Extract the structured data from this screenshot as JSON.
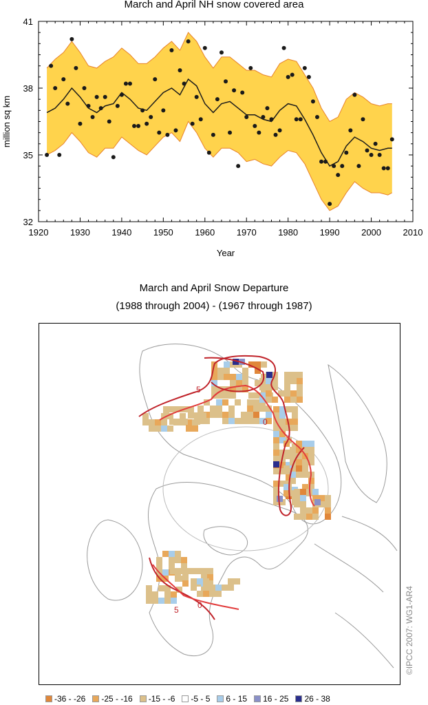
{
  "chart_data": [
    {
      "type": "scatter",
      "title": "March and April NH snow covered area",
      "xlabel": "Year",
      "ylabel": "million sq km",
      "xlim": [
        1920,
        2010
      ],
      "ylim": [
        32,
        41
      ],
      "xticks": [
        1920,
        1930,
        1940,
        1950,
        1960,
        1970,
        1980,
        1990,
        2000,
        2010
      ],
      "yticks": [
        32,
        35,
        38,
        41
      ],
      "colors": {
        "band": "#FFD34C",
        "band_edge": "#E8822A",
        "points": "#1a1a1a",
        "smooth": "#1a1a1a"
      },
      "series": [
        {
          "kind": "points",
          "x": [
            1922,
            1923,
            1924,
            1925,
            1926,
            1927,
            1928,
            1929,
            1930,
            1931,
            1932,
            1933,
            1934,
            1935,
            1936,
            1937,
            1938,
            1939,
            1940,
            1941,
            1942,
            1943,
            1944,
            1945,
            1946,
            1947,
            1948,
            1949,
            1950,
            1951,
            1952,
            1953,
            1954,
            1955,
            1956,
            1957,
            1958,
            1959,
            1960,
            1961,
            1962,
            1963,
            1964,
            1965,
            1966,
            1967,
            1968,
            1969,
            1970,
            1971,
            1972,
            1973,
            1974,
            1975,
            1976,
            1977,
            1978,
            1979,
            1980,
            1981,
            1982,
            1983,
            1984,
            1985,
            1986,
            1987,
            1988,
            1989,
            1990,
            1991,
            1992,
            1993,
            1994,
            1995,
            1996,
            1997,
            1998,
            1999,
            2000,
            2001,
            2002,
            2003,
            2004,
            2005
          ],
          "y": [
            35.0,
            39.0,
            38.0,
            35.0,
            38.4,
            37.3,
            40.2,
            38.9,
            36.4,
            38.0,
            37.2,
            36.7,
            37.6,
            37.1,
            37.6,
            36.5,
            34.9,
            37.2,
            37.7,
            38.2,
            38.2,
            36.3,
            36.3,
            37.0,
            36.4,
            36.7,
            38.4,
            36.0,
            37.0,
            35.9,
            39.7,
            36.1,
            38.8,
            38.2,
            40.1,
            36.4,
            37.6,
            36.6,
            39.8,
            35.1,
            35.9,
            37.5,
            39.6,
            38.3,
            36.0,
            37.9,
            34.5,
            37.8,
            36.7,
            38.9,
            36.3,
            36.0,
            36.7,
            37.1,
            36.6,
            35.9,
            36.1,
            39.8,
            38.5,
            38.6,
            36.6,
            36.6,
            38.9,
            38.5,
            37.4,
            36.7,
            34.7,
            34.7,
            32.8,
            34.5,
            34.1,
            34.5,
            35.1,
            36.1,
            37.7,
            34.5,
            36.6,
            35.2,
            35.0,
            35.5,
            35.0,
            34.4,
            34.4,
            35.7
          ]
        },
        {
          "kind": "smooth",
          "x": [
            1922,
            1924,
            1926,
            1928,
            1930,
            1932,
            1934,
            1936,
            1938,
            1940,
            1942,
            1944,
            1946,
            1948,
            1950,
            1952,
            1954,
            1956,
            1958,
            1960,
            1962,
            1964,
            1966,
            1968,
            1970,
            1972,
            1974,
            1976,
            1978,
            1980,
            1982,
            1984,
            1986,
            1988,
            1990,
            1992,
            1994,
            1996,
            1998,
            2000,
            2002,
            2004,
            2005
          ],
          "y": [
            36.9,
            37.1,
            37.5,
            38.0,
            37.6,
            37.1,
            36.9,
            37.2,
            37.3,
            37.8,
            37.5,
            37.1,
            37.0,
            37.4,
            37.8,
            38.0,
            37.7,
            38.4,
            38.1,
            37.3,
            36.9,
            37.3,
            37.4,
            37.1,
            36.8,
            36.8,
            36.6,
            36.5,
            37.0,
            37.3,
            37.2,
            36.6,
            35.9,
            35.1,
            34.5,
            34.7,
            35.4,
            35.8,
            35.6,
            35.3,
            35.2,
            35.3,
            35.3
          ]
        },
        {
          "kind": "band_upper",
          "x": [
            1922,
            1924,
            1926,
            1928,
            1930,
            1932,
            1934,
            1936,
            1938,
            1940,
            1942,
            1944,
            1946,
            1948,
            1950,
            1952,
            1954,
            1956,
            1958,
            1960,
            1962,
            1964,
            1966,
            1968,
            1970,
            1972,
            1974,
            1976,
            1978,
            1980,
            1982,
            1984,
            1986,
            1988,
            1990,
            1992,
            1994,
            1996,
            1998,
            2000,
            2002,
            2004,
            2005
          ],
          "y": [
            38.9,
            39.3,
            39.6,
            40.1,
            39.6,
            39.0,
            38.9,
            39.2,
            39.4,
            39.8,
            39.5,
            39.1,
            39.1,
            39.4,
            39.8,
            40.1,
            39.7,
            40.5,
            40.1,
            39.4,
            38.9,
            39.4,
            39.4,
            39.1,
            38.8,
            38.8,
            38.6,
            38.5,
            39.1,
            39.3,
            39.2,
            38.6,
            38.0,
            37.1,
            36.5,
            36.7,
            37.5,
            37.8,
            37.6,
            37.3,
            37.2,
            37.3,
            37.3
          ]
        },
        {
          "kind": "band_lower",
          "x": [
            1922,
            1924,
            1926,
            1928,
            1930,
            1932,
            1934,
            1936,
            1938,
            1940,
            1942,
            1944,
            1946,
            1948,
            1950,
            1952,
            1954,
            1956,
            1958,
            1960,
            1962,
            1964,
            1966,
            1968,
            1970,
            1972,
            1974,
            1976,
            1978,
            1980,
            1982,
            1984,
            1986,
            1988,
            1990,
            1992,
            1994,
            1996,
            1998,
            2000,
            2002,
            2004,
            2005
          ],
          "y": [
            35.0,
            35.2,
            35.5,
            36.0,
            35.6,
            35.1,
            34.9,
            35.3,
            35.3,
            35.8,
            35.5,
            35.2,
            35.0,
            35.4,
            35.8,
            36.0,
            35.6,
            36.5,
            36.0,
            35.3,
            34.9,
            35.3,
            35.3,
            35.1,
            34.7,
            34.8,
            34.6,
            34.5,
            34.9,
            35.2,
            35.1,
            34.6,
            33.8,
            33.0,
            32.5,
            32.7,
            33.3,
            33.8,
            33.5,
            33.3,
            33.3,
            33.2,
            33.3
          ]
        }
      ]
    },
    {
      "type": "heatmap",
      "title_line1": "March and April Snow Departure",
      "title_line2": "(1988 through 2004) - (1967 through 1987)",
      "contour_labels": [
        "5",
        "0",
        "5",
        "0"
      ],
      "legend": [
        {
          "label": "-36 - -26",
          "color": "#E0873A"
        },
        {
          "label": "-25 - -16",
          "color": "#E8A85A"
        },
        {
          "label": "-15 - -6",
          "color": "#DCC08A"
        },
        {
          "label": "-5 - 5",
          "color": "#FFFFFF"
        },
        {
          "label": "6 - 15",
          "color": "#A8CDEA"
        },
        {
          "label": "16 - 25",
          "color": "#8A90C8"
        },
        {
          "label": "26 - 38",
          "color": "#2A2E8C"
        }
      ],
      "credit": "©IPCC  2007: WG1-AR4"
    }
  ]
}
